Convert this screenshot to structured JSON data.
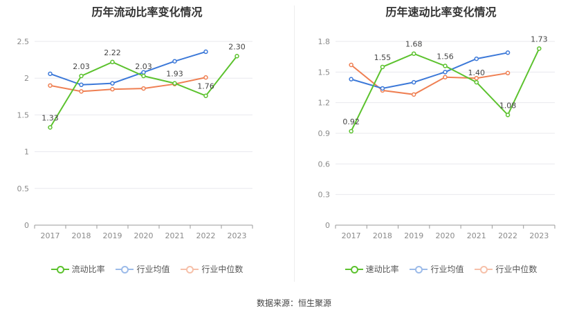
{
  "colors": {
    "primary": "#5cc22e",
    "industry_avg": "#3b78d8",
    "industry_median": "#ef7f52"
  },
  "source_text": "数据来源：恒生聚源",
  "chart_data": [
    {
      "type": "line",
      "title": "历年流动比率变化情况",
      "categories": [
        "2017",
        "2018",
        "2019",
        "2020",
        "2021",
        "2022",
        "2023"
      ],
      "ylim": [
        0,
        2.5
      ],
      "yticks": [
        "0",
        "0.5",
        "1",
        "1.5",
        "2",
        "2.5"
      ],
      "series": [
        {
          "name": "流动比率",
          "color": "#5cc22e",
          "values": [
            1.33,
            2.03,
            2.22,
            2.03,
            1.93,
            1.76,
            2.3
          ],
          "labels": [
            "1.33",
            "2.03",
            "2.22",
            "2.03",
            "1.93",
            "1.76",
            "2.30"
          ]
        },
        {
          "name": "行业均值",
          "color": "#3b78d8",
          "values": [
            2.06,
            1.91,
            1.93,
            2.08,
            2.23,
            2.36,
            null
          ]
        },
        {
          "name": "行业中位数",
          "color": "#ef7f52",
          "values": [
            1.9,
            1.82,
            1.85,
            1.86,
            1.92,
            2.01,
            null
          ]
        }
      ]
    },
    {
      "type": "line",
      "title": "历年速动比率变化情况",
      "categories": [
        "2017",
        "2018",
        "2019",
        "2020",
        "2021",
        "2022",
        "2023"
      ],
      "ylim": [
        0,
        1.8
      ],
      "yticks": [
        "0",
        "0.3",
        "0.6",
        "0.9",
        "1.2",
        "1.5",
        "1.8"
      ],
      "series": [
        {
          "name": "速动比率",
          "color": "#5cc22e",
          "values": [
            0.92,
            1.55,
            1.68,
            1.56,
            1.4,
            1.08,
            1.73
          ],
          "labels": [
            "0.92",
            "1.55",
            "1.68",
            "1.56",
            "1.40",
            "1.08",
            "1.73"
          ]
        },
        {
          "name": "行业均值",
          "color": "#3b78d8",
          "values": [
            1.43,
            1.34,
            1.4,
            1.5,
            1.63,
            1.69,
            null
          ]
        },
        {
          "name": "行业中位数",
          "color": "#ef7f52",
          "values": [
            1.57,
            1.32,
            1.28,
            1.45,
            1.44,
            1.49,
            null
          ]
        }
      ]
    }
  ]
}
